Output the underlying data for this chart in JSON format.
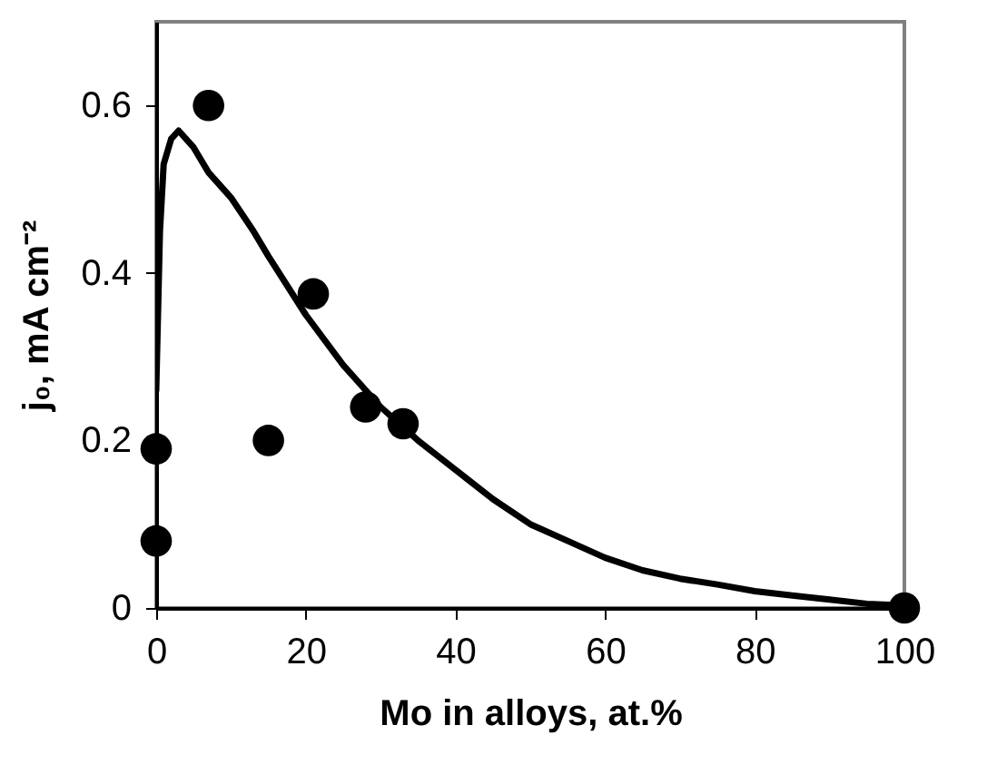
{
  "chart_data": {
    "type": "scatter",
    "xlabel": "Mo in alloys, at.%",
    "ylabel": "j₀, mA cm⁻²",
    "xlim": [
      0,
      100
    ],
    "xticks": [
      0,
      20,
      40,
      60,
      80,
      100
    ],
    "ylim": [
      0,
      0.7
    ],
    "yticks": [
      0,
      0.2,
      0.4,
      0.6
    ],
    "grid": false,
    "marker": "circle",
    "series": [
      {
        "type": "line",
        "color": "#000000",
        "line_style": "solid",
        "marker": "none",
        "x": [
          0,
          0.5,
          1,
          2,
          3,
          5,
          7,
          10,
          13,
          15,
          20,
          25,
          30,
          35,
          40,
          45,
          50,
          55,
          60,
          65,
          70,
          75,
          80,
          85,
          90,
          95,
          100
        ],
        "values": [
          0.26,
          0.45,
          0.53,
          0.56,
          0.57,
          0.55,
          0.52,
          0.49,
          0.45,
          0.42,
          0.35,
          0.29,
          0.24,
          0.2,
          0.165,
          0.13,
          0.1,
          0.08,
          0.06,
          0.045,
          0.035,
          0.028,
          0.02,
          0.015,
          0.01,
          0.005,
          0.003
        ]
      },
      {
        "color": "#000000",
        "x": [
          0,
          0,
          7,
          15,
          21,
          28,
          33,
          100
        ],
        "values": [
          0.08,
          0.19,
          0.6,
          0.2,
          0.375,
          0.24,
          0.22,
          0
        ]
      }
    ]
  }
}
